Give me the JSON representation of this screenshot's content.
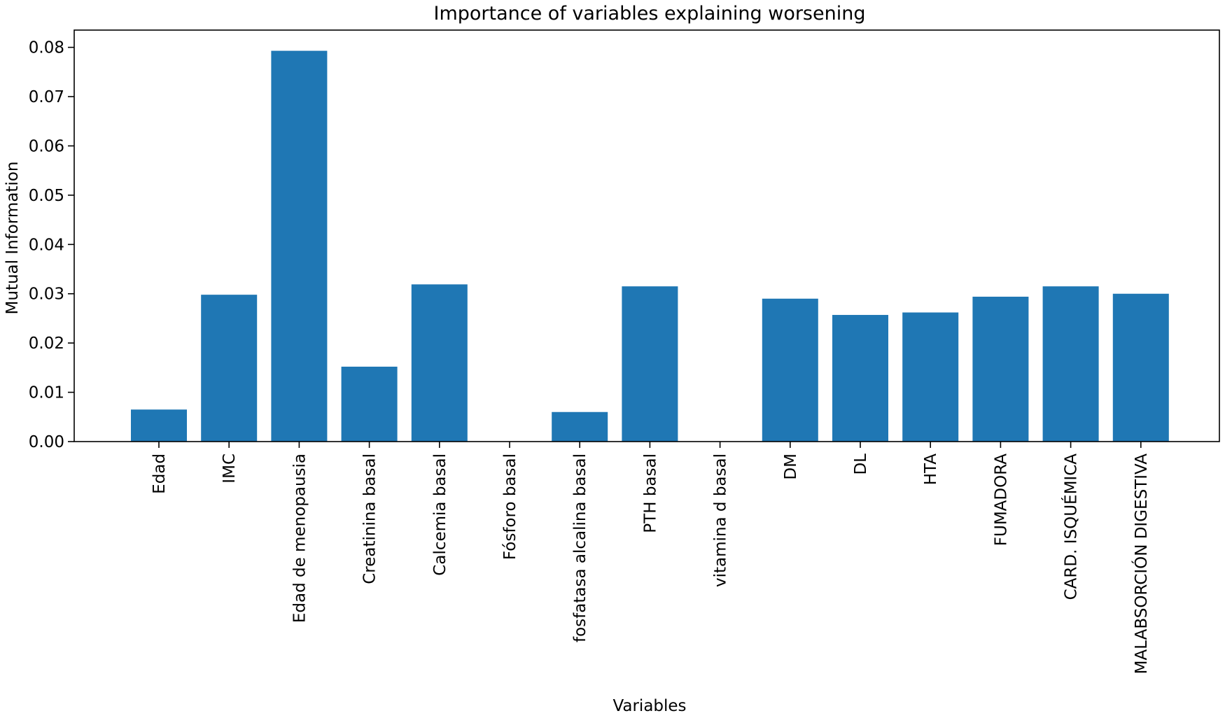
{
  "chart_data": {
    "type": "bar",
    "title": "Importance of variables explaining worsening",
    "xlabel": "Variables",
    "ylabel": "Mutual Information",
    "categories": [
      "Edad",
      "IMC",
      "Edad de menopausia",
      "Creatinina basal",
      "Calcemia basal",
      "Fósforo basal",
      "fosfatasa alcalina basal",
      "PTH basal",
      "vitamina d basal",
      "DM",
      "DL",
      "HTA",
      "FUMADORA",
      "CARD. ISQUÉMICA",
      "MALABSORCIÓN DIGESTIVA"
    ],
    "values": [
      0.0065,
      0.0298,
      0.0793,
      0.0152,
      0.0319,
      0.0,
      0.006,
      0.0315,
      0.0,
      0.029,
      0.0257,
      0.0262,
      0.0294,
      0.0315,
      0.03
    ],
    "ylim": [
      0,
      0.0835
    ],
    "yticks": [
      "0.00",
      "0.01",
      "0.02",
      "0.03",
      "0.04",
      "0.05",
      "0.06",
      "0.07",
      "0.08"
    ],
    "bar_color": "#1f77b4",
    "grid": false,
    "legend": "none"
  }
}
